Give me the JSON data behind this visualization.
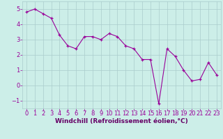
{
  "x": [
    0,
    1,
    2,
    3,
    4,
    5,
    6,
    7,
    8,
    9,
    10,
    11,
    12,
    13,
    14,
    15,
    16,
    17,
    18,
    19,
    20,
    21,
    22,
    23
  ],
  "y": [
    4.8,
    5.0,
    4.7,
    4.4,
    3.3,
    2.6,
    2.4,
    3.2,
    3.2,
    3.0,
    3.4,
    3.2,
    2.6,
    2.4,
    1.7,
    1.7,
    -1.2,
    2.4,
    1.9,
    1.0,
    0.3,
    0.4,
    1.5,
    0.7
  ],
  "line_color": "#990099",
  "marker": "+",
  "marker_color": "#990099",
  "bg_color": "#cceee8",
  "grid_color": "#aacccc",
  "xlabel": "Windchill (Refroidissement éolien,°C)",
  "xlabel_color": "#660066",
  "xlabel_fontsize": 6.5,
  "tick_color": "#990099",
  "tick_fontsize": 6.0,
  "ylim": [
    -1.5,
    5.5
  ],
  "xlim": [
    -0.5,
    23.5
  ],
  "yticks": [
    -1,
    0,
    1,
    2,
    3,
    4,
    5
  ],
  "xticks": [
    0,
    1,
    2,
    3,
    4,
    5,
    6,
    7,
    8,
    9,
    10,
    11,
    12,
    13,
    14,
    15,
    16,
    17,
    18,
    19,
    20,
    21,
    22,
    23
  ]
}
